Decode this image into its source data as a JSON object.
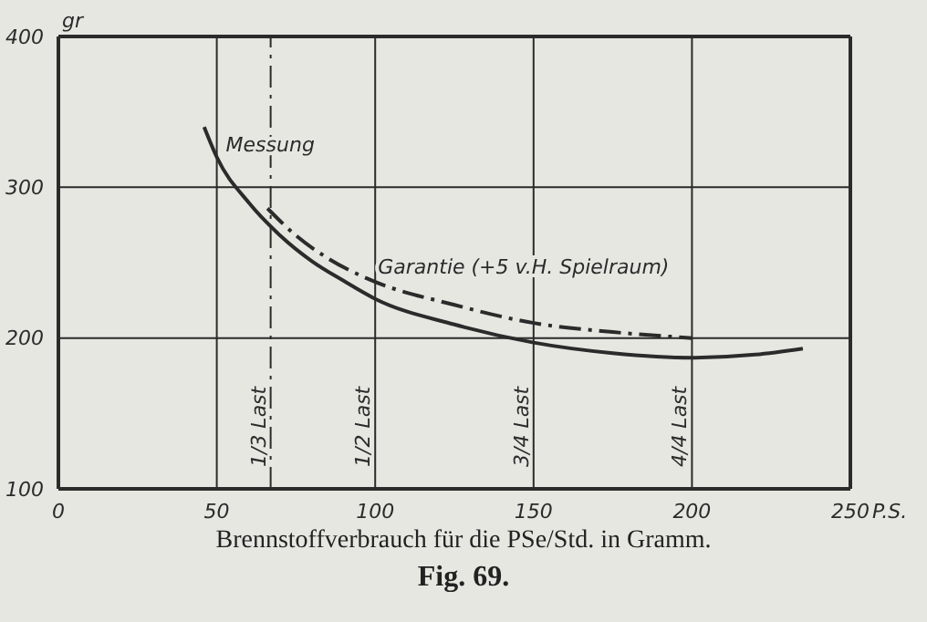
{
  "chart_data": {
    "type": "line",
    "xlabel": "P.S.",
    "ylabel": "gr",
    "annotations": [
      "Brennstoffverbrauch für die PSe/Std. in Gramm.",
      "Fig. 69."
    ],
    "xlim": [
      0,
      250
    ],
    "xticks": [
      0,
      50,
      100,
      150,
      200,
      250
    ],
    "ylim": [
      100,
      400
    ],
    "yticks": [
      100,
      200,
      300,
      400
    ],
    "grid": true,
    "legend": false,
    "marker": "none",
    "series": [
      {
        "name": "Messung",
        "color": "#2b2b2b",
        "line_style": "solid",
        "x": [
          46,
          50,
          60,
          70,
          80,
          90,
          100,
          125,
          150,
          175,
          200,
          220,
          235
        ],
        "values": [
          340,
          320,
          290,
          268,
          251,
          238,
          226,
          209,
          197,
          190,
          187,
          189,
          193
        ]
      },
      {
        "name": "Garantie (+5 v.H. Spielraum)",
        "color": "#2b2b2b",
        "line_style": "dashed",
        "x": [
          66,
          75,
          85,
          98,
          125,
          150,
          175,
          200
        ],
        "values": [
          286,
          268,
          253,
          239,
          222,
          210,
          204,
          200
        ]
      }
    ],
    "ref_lines": [
      {
        "axis": "x",
        "value": 67,
        "label": "1/3 Last",
        "line_style": "dashed"
      },
      {
        "axis": "x",
        "value": 100,
        "label": "1/2 Last",
        "line_style": "solid"
      },
      {
        "axis": "x",
        "value": 150,
        "label": "3/4 Last",
        "line_style": "solid"
      },
      {
        "axis": "x",
        "value": 200,
        "label": "4/4 Last",
        "line_style": "solid"
      }
    ]
  }
}
